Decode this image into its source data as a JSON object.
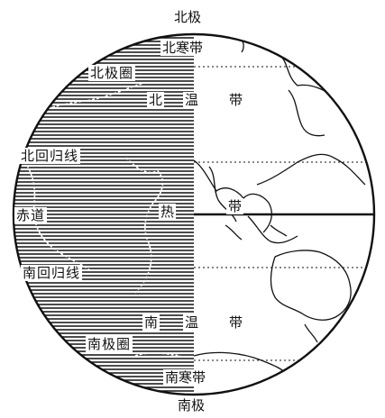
{
  "poles": {
    "north": "北极",
    "south": "南极"
  },
  "zones": {
    "north_frigid": "北寒带",
    "north_temperate": [
      "北",
      "温",
      "带"
    ],
    "torrid": [
      "热",
      "带"
    ],
    "south_temperate": [
      "南",
      "温",
      "带"
    ],
    "south_frigid": "南寒带"
  },
  "lines": {
    "arctic_circle": "北极圈",
    "tropic_of_cancer": "北回归线",
    "equator": "赤道",
    "tropic_of_capricorn": "南回归线",
    "antarctic_circle": "南极圈"
  },
  "colors": {
    "ink": "#111111",
    "paper": "#ffffff"
  }
}
